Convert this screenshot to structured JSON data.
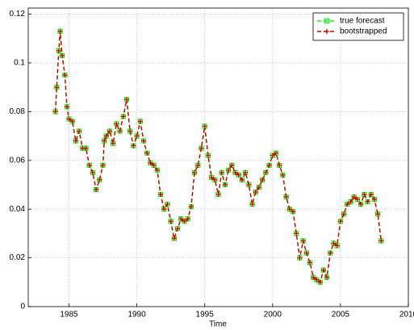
{
  "chart_data": {
    "type": "line",
    "x_label": "Time",
    "x": [
      1984.0,
      1984.1,
      1984.25,
      1984.35,
      1984.5,
      1984.7,
      1984.85,
      1985.0,
      1985.25,
      1985.5,
      1985.75,
      1986.0,
      1986.25,
      1986.5,
      1986.75,
      1987.0,
      1987.25,
      1987.5,
      1987.6,
      1987.75,
      1988.0,
      1988.25,
      1988.5,
      1988.75,
      1989.0,
      1989.25,
      1989.5,
      1989.75,
      1990.0,
      1990.25,
      1990.5,
      1990.75,
      1991.0,
      1991.25,
      1991.5,
      1991.75,
      1992.0,
      1992.25,
      1992.5,
      1992.75,
      1993.0,
      1993.25,
      1993.5,
      1993.75,
      1994.0,
      1994.25,
      1994.5,
      1994.75,
      1995.0,
      1995.25,
      1995.5,
      1995.75,
      1996.0,
      1996.25,
      1996.5,
      1996.75,
      1997.0,
      1997.25,
      1997.5,
      1997.75,
      1998.0,
      1998.25,
      1998.5,
      1998.75,
      1999.0,
      1999.25,
      1999.5,
      1999.75,
      2000.0,
      2000.25,
      2000.5,
      2000.75,
      2001.0,
      2001.25,
      2001.5,
      2001.75,
      2002.0,
      2002.25,
      2002.5,
      2002.75,
      2003.0,
      2003.25,
      2003.5,
      2003.75,
      2004.0,
      2004.25,
      2004.5,
      2004.75,
      2005.0,
      2005.25,
      2005.5,
      2005.75,
      2006.0,
      2006.25,
      2006.5,
      2006.75,
      2007.0,
      2007.25,
      2007.5,
      2007.75,
      2008.0
    ],
    "series": [
      {
        "name": "true forecast",
        "color": "#00ff00",
        "marker": "square",
        "values": [
          0.08,
          0.09,
          0.105,
          0.113,
          0.103,
          0.095,
          0.082,
          0.077,
          0.076,
          0.068,
          0.072,
          0.065,
          0.065,
          0.058,
          0.055,
          0.048,
          0.052,
          0.058,
          0.068,
          0.07,
          0.072,
          0.067,
          0.075,
          0.072,
          0.078,
          0.085,
          0.072,
          0.066,
          0.07,
          0.076,
          0.068,
          0.063,
          0.059,
          0.058,
          0.056,
          0.046,
          0.04,
          0.042,
          0.035,
          0.028,
          0.032,
          0.036,
          0.035,
          0.036,
          0.041,
          0.055,
          0.058,
          0.065,
          0.074,
          0.062,
          0.053,
          0.052,
          0.046,
          0.055,
          0.05,
          0.056,
          0.058,
          0.055,
          0.054,
          0.052,
          0.055,
          0.05,
          0.042,
          0.047,
          0.049,
          0.052,
          0.055,
          0.058,
          0.062,
          0.063,
          0.058,
          0.054,
          0.045,
          0.04,
          0.039,
          0.03,
          0.02,
          0.027,
          0.022,
          0.018,
          0.012,
          0.011,
          0.01,
          0.015,
          0.012,
          0.022,
          0.026,
          0.025,
          0.035,
          0.038,
          0.042,
          0.043,
          0.045,
          0.044,
          0.042,
          0.046,
          0.043,
          0.046,
          0.044,
          0.038,
          0.027
        ]
      },
      {
        "name": "bootstrapped",
        "color": "#cc0000",
        "marker": "plus",
        "values": [
          0.08,
          0.09,
          0.105,
          0.113,
          0.103,
          0.095,
          0.082,
          0.077,
          0.076,
          0.068,
          0.072,
          0.065,
          0.065,
          0.058,
          0.055,
          0.048,
          0.052,
          0.058,
          0.068,
          0.07,
          0.072,
          0.067,
          0.075,
          0.072,
          0.078,
          0.085,
          0.072,
          0.066,
          0.07,
          0.076,
          0.068,
          0.063,
          0.059,
          0.058,
          0.056,
          0.046,
          0.04,
          0.042,
          0.035,
          0.028,
          0.032,
          0.036,
          0.035,
          0.036,
          0.041,
          0.055,
          0.058,
          0.065,
          0.074,
          0.062,
          0.053,
          0.052,
          0.046,
          0.055,
          0.05,
          0.056,
          0.058,
          0.055,
          0.054,
          0.052,
          0.055,
          0.05,
          0.042,
          0.047,
          0.049,
          0.052,
          0.055,
          0.058,
          0.062,
          0.063,
          0.058,
          0.054,
          0.045,
          0.04,
          0.039,
          0.03,
          0.02,
          0.027,
          0.022,
          0.018,
          0.012,
          0.011,
          0.01,
          0.015,
          0.012,
          0.022,
          0.026,
          0.025,
          0.035,
          0.038,
          0.042,
          0.043,
          0.045,
          0.044,
          0.042,
          0.046,
          0.043,
          0.046,
          0.044,
          0.038,
          0.027
        ]
      }
    ],
    "xlim": [
      1982,
      2010
    ],
    "xticks": [
      1985,
      1990,
      1995,
      2000,
      2005,
      2010
    ],
    "ylim": [
      0,
      0.1225
    ],
    "yticks": [
      0,
      0.02,
      0.04,
      0.06,
      0.08,
      0.1,
      0.12
    ],
    "grid": true,
    "legend": "northeast"
  }
}
